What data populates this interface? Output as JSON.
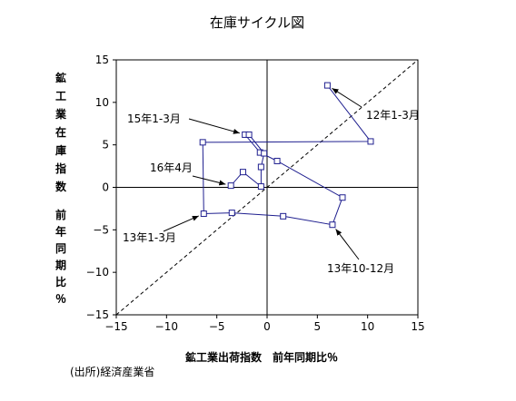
{
  "chart_data": {
    "type": "scatter",
    "title": "在庫サイクル図",
    "xlabel": "鉱工業出荷指数　前年同期比％",
    "ylabel_top": "鉱工業在庫指数",
    "ylabel_bottom": "前年同期比％",
    "xlim": [
      -15,
      15
    ],
    "ylim": [
      -15,
      15
    ],
    "xticks": [
      -15,
      -10,
      -5,
      0,
      5,
      10,
      15
    ],
    "yticks": [
      -15,
      -10,
      -5,
      0,
      5,
      10,
      15
    ],
    "xtick_labels": [
      "−15",
      "−10",
      "−5",
      "0",
      "5",
      "10",
      "15"
    ],
    "ytick_labels": [
      "−15",
      "−10",
      "−5",
      "0",
      "5",
      "10",
      "15"
    ],
    "grid": false,
    "series": [
      {
        "points": [
          {
            "x": 6.0,
            "y": 12.0
          },
          {
            "x": 10.3,
            "y": 5.4
          },
          {
            "x": -6.4,
            "y": 5.3
          },
          {
            "x": -6.3,
            "y": -3.1
          },
          {
            "x": -3.5,
            "y": -3.0
          },
          {
            "x": 1.6,
            "y": -3.4
          },
          {
            "x": 6.5,
            "y": -4.4
          },
          {
            "x": 7.5,
            "y": -1.2
          },
          {
            "x": 1.0,
            "y": 3.1
          },
          {
            "x": -0.7,
            "y": 4.1
          },
          {
            "x": -2.2,
            "y": 6.2
          },
          {
            "x": -1.8,
            "y": 6.2
          },
          {
            "x": -0.3,
            "y": 4.0
          },
          {
            "x": -0.6,
            "y": 2.4
          },
          {
            "x": -0.6,
            "y": 0.1
          },
          {
            "x": -2.4,
            "y": 1.8
          },
          {
            "x": -3.6,
            "y": 0.2
          }
        ]
      }
    ],
    "reference_line": {
      "from": [
        -15,
        -15
      ],
      "to": [
        15,
        15
      ],
      "style": "dashed"
    },
    "annotations": [
      {
        "text": "12年1-3月",
        "point": 0
      },
      {
        "text": "13年1-3月",
        "point": 3
      },
      {
        "text": "13年10-12月",
        "point": 6
      },
      {
        "text": "15年1-3月",
        "point": 10
      },
      {
        "text": "16年4月",
        "point": 16
      }
    ]
  },
  "source": "(出所)経済産業省"
}
